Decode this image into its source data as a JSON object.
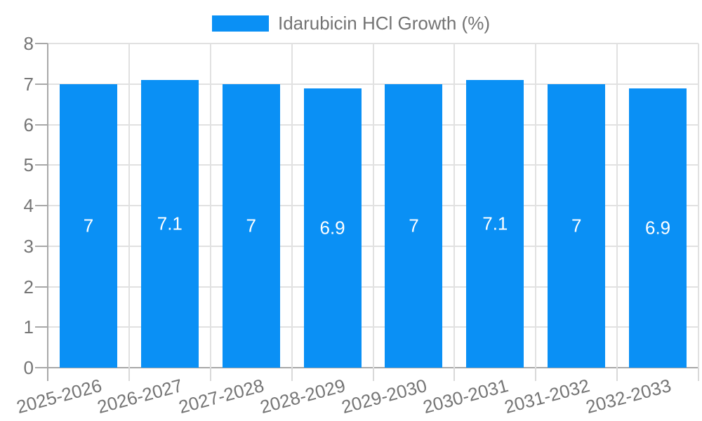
{
  "chart_data": {
    "type": "bar",
    "title": "Idarubicin HCl Growth (%)",
    "categories": [
      "2025-2026",
      "2026-2027",
      "2027-2028",
      "2028-2029",
      "2029-2030",
      "2030-2031",
      "2031-2032",
      "2032-2033"
    ],
    "series": [
      {
        "name": "Idarubicin HCl Growth (%)",
        "values": [
          7,
          7.1,
          7,
          6.9,
          7,
          7.1,
          7,
          6.9
        ]
      }
    ],
    "bar_value_labels": [
      "7",
      "7.1",
      "7",
      "6.9",
      "7",
      "7.1",
      "7",
      "6.9"
    ],
    "xlabel": "",
    "ylabel": "",
    "ylim": [
      0,
      8
    ],
    "ytick_step": 1,
    "ytick_labels": [
      "0",
      "1",
      "2",
      "3",
      "4",
      "5",
      "6",
      "7",
      "8"
    ],
    "grid": true,
    "legend_position": "top-center",
    "colors": {
      "bar": "#0a90f5",
      "grid": "#e1e1e1",
      "axis": "#a8a8a8",
      "boundary_tick": "#d9d9d9",
      "text": "#757575",
      "legend_text": "#737373",
      "bar_label_text": "#ffffff"
    }
  }
}
